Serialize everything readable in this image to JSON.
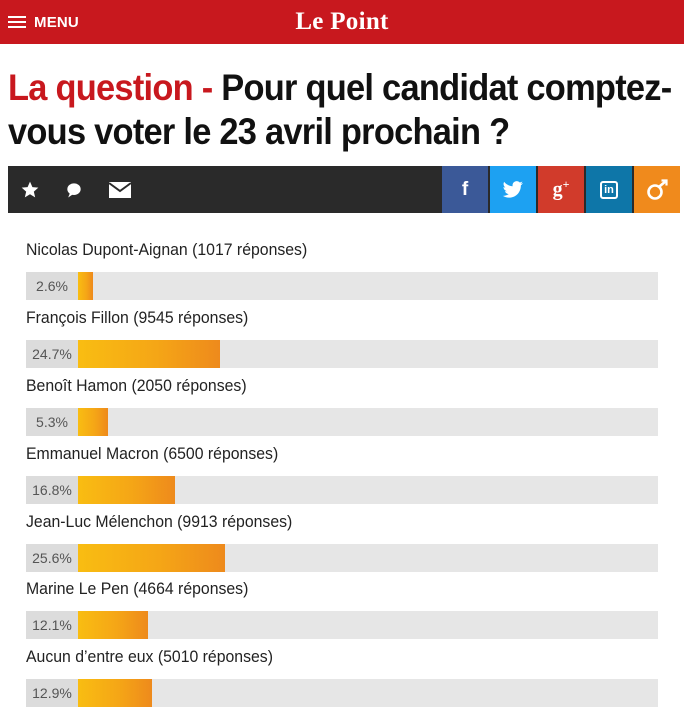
{
  "header": {
    "menu_label": "MENU",
    "logo_text": "Le Point",
    "brand_color": "#c8181e"
  },
  "title": {
    "prefix": "La question -",
    "question": " Pour quel candidat comptez-vous voter le 23 avril prochain ?"
  },
  "toolbar": {
    "tools": [
      "star-icon",
      "comment-icon",
      "mail-icon"
    ],
    "social": [
      {
        "name": "facebook",
        "glyph": "f",
        "color": "#3b5998"
      },
      {
        "name": "twitter",
        "glyph": "twitter-bird",
        "color": "#1da1f2"
      },
      {
        "name": "google-plus",
        "glyph": "g+",
        "color": "#d13b2b"
      },
      {
        "name": "linkedin",
        "glyph": "in",
        "color": "#0e76a8"
      },
      {
        "name": "le-point",
        "glyph": "le-point-mark",
        "color": "#f08a1c"
      }
    ]
  },
  "poll": {
    "results": [
      {
        "label": "Nicolas Dupont-Aignan (1017 réponses)",
        "percent_text": "2.6%",
        "percent": 2.6
      },
      {
        "label": "François Fillon (9545 réponses)",
        "percent_text": "24.7%",
        "percent": 24.7
      },
      {
        "label": "Benoît Hamon (2050 réponses)",
        "percent_text": "5.3%",
        "percent": 5.3
      },
      {
        "label": "Emmanuel Macron (6500 réponses)",
        "percent_text": "16.8%",
        "percent": 16.8
      },
      {
        "label": "Jean-Luc Mélenchon (9913 réponses)",
        "percent_text": "25.6%",
        "percent": 25.6
      },
      {
        "label": "Marine Le Pen (4664 réponses)",
        "percent_text": "12.1%",
        "percent": 12.1
      },
      {
        "label": "Aucun d’entre eux (5010 réponses)",
        "percent_text": "12.9%",
        "percent": 12.9
      }
    ]
  }
}
